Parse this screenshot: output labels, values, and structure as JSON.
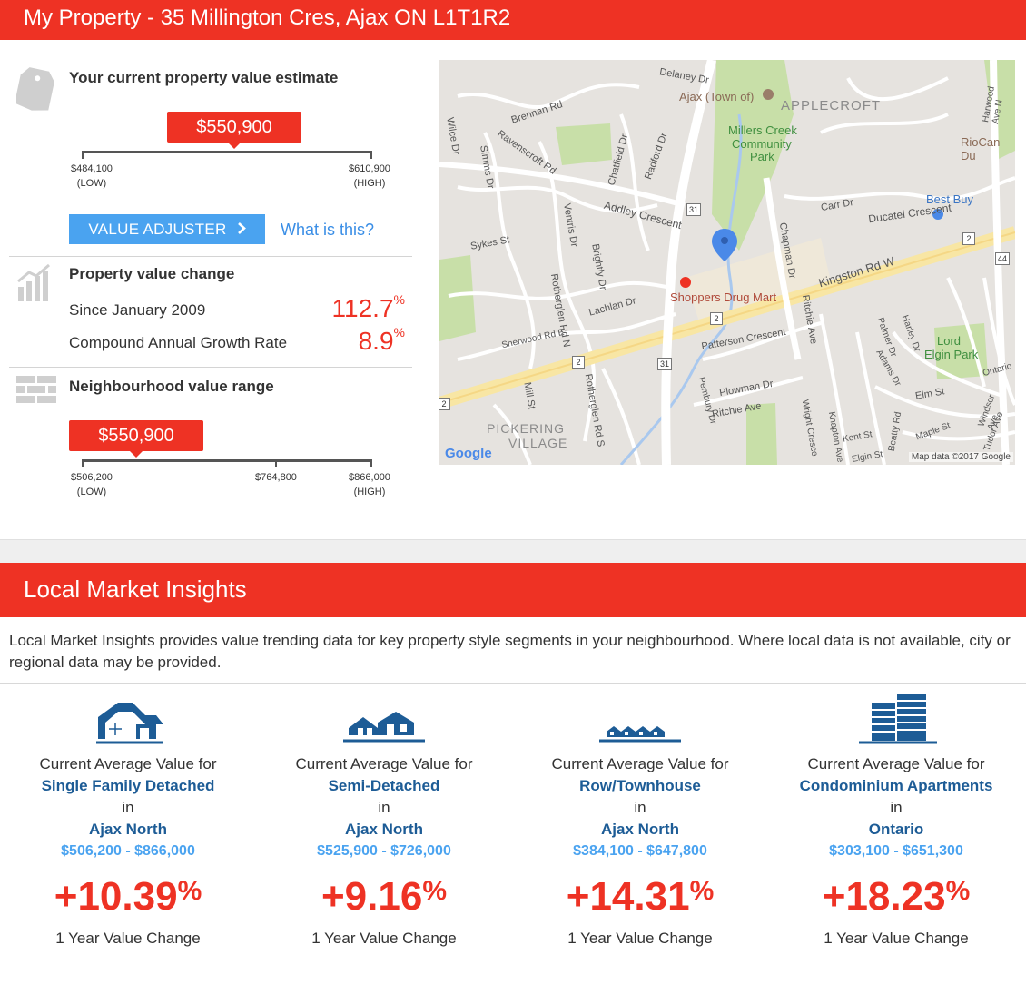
{
  "header": {
    "title": "My Property - 35 Millington Cres, Ajax ON L1T1R2"
  },
  "estimate": {
    "heading": "Your current property value estimate",
    "value": "$550,900",
    "low": "$484,100",
    "low_tag": "(LOW)",
    "high": "$610,900",
    "high_tag": "(HIGH)",
    "marker_fraction": 0.53,
    "adjuster_label": "VALUE ADJUSTER",
    "what_link": "What is this?"
  },
  "change": {
    "heading": "Property value change",
    "rows": [
      {
        "label": "Since January 2009",
        "value": "112.7",
        "unit": "%"
      },
      {
        "label": "Compound Annual Growth Rate",
        "value": "8.9",
        "unit": "%"
      }
    ]
  },
  "neighbourhood": {
    "heading": "Neighbourhood value range",
    "value": "$550,900",
    "low": "$506,200",
    "low_tag": "(LOW)",
    "mid": "$764,800",
    "high": "$866,000",
    "high_tag": "(HIGH)",
    "marker_fraction": 0.2
  },
  "map": {
    "labels": [
      "Delaney Dr",
      "Ajax (Town of)",
      "APPLECROFT",
      "Millers Creek",
      "Community",
      "Park",
      "RioCan Du",
      "Brennan Rd",
      "Ravenscroft Rd",
      "Chatfield Dr",
      "Radford Dr",
      "Simms Dr",
      "Wilce Dr",
      "Addley Crescent",
      "Carr Dr",
      "Ducatel Crescent",
      "Best Buy",
      "Sykes St",
      "Ventris Dr",
      "Brightly Dr",
      "Kingston Rd W",
      "Shoppers Drug Mart",
      "Lachlan Dr",
      "Rotherglen Rd N",
      "Chapman Dr",
      "Ritchie Ave",
      "Sherwood Rd E",
      "Patterson Crescent",
      "Lord",
      "Elgin Park",
      "Plowman Dr",
      "Ritchie Ave",
      "Pembury Dr",
      "Mill St",
      "Rotherglen Rd S",
      "PICKERING",
      "VILLAGE",
      "Elm St",
      "Ontario",
      "Windsor Ave",
      "Kent St",
      "Beatty Rd",
      "Maple St",
      "Elgin St",
      "Adams Dr",
      "Palmer Dr",
      "Harley Dr",
      "Wright Cresce",
      "Knapton Ave",
      "Tudor Ave",
      "Harwood Ave N"
    ],
    "shields": [
      "31",
      "31",
      "2",
      "2",
      "2",
      "2",
      "44"
    ],
    "google": "Google",
    "attribution": "Map data ©2017 Google"
  },
  "insights": {
    "title": "Local Market Insights",
    "intro": "Local Market Insights provides value trending data for key property style segments in your neighbourhood. Where local data is not available, city or regional data may be provided.",
    "cards": [
      {
        "icon": "house-icon",
        "line1": "Current Average Value for",
        "segment": "Single Family Detached",
        "in": "in",
        "area": "Ajax North",
        "range": "$506,200 - $866,000",
        "pct": "+10.39",
        "unit": "%",
        "foot": "1 Year Value Change"
      },
      {
        "icon": "semi-detached-icon",
        "line1": "Current Average Value for",
        "segment": "Semi-Detached",
        "in": "in",
        "area": "Ajax North",
        "range": "$525,900 - $726,000",
        "pct": "+9.16",
        "unit": "%",
        "foot": "1 Year Value Change"
      },
      {
        "icon": "townhouse-icon",
        "line1": "Current Average Value for",
        "segment": "Row/Townhouse",
        "in": "in",
        "area": "Ajax North",
        "range": "$384,100 - $647,800",
        "pct": "+14.31",
        "unit": "%",
        "foot": "1 Year Value Change"
      },
      {
        "icon": "condo-icon",
        "line1": "Current Average Value for",
        "segment": "Condominium Apartments",
        "in": "in",
        "area": "Ontario",
        "range": "$303,100 - $651,300",
        "pct": "+18.23",
        "unit": "%",
        "foot": "1 Year Value Change"
      }
    ]
  }
}
